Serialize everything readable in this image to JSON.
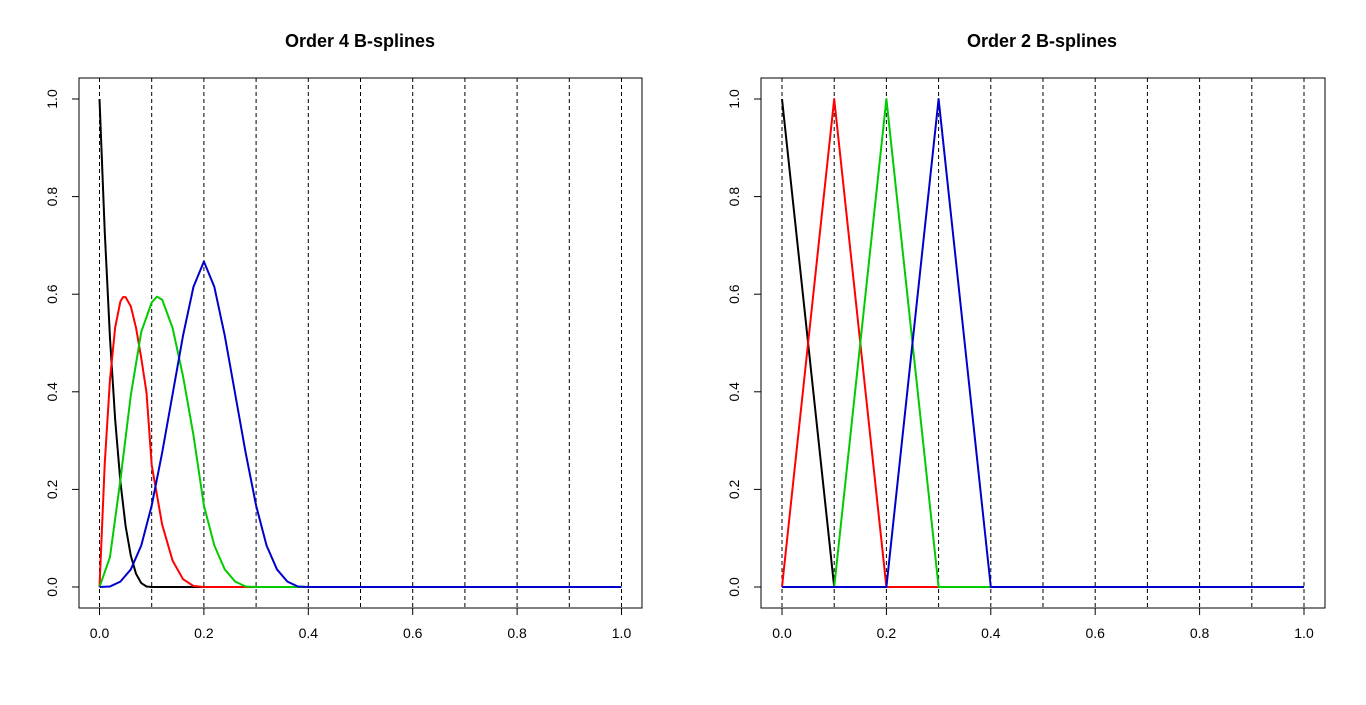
{
  "chart_data": [
    {
      "type": "line",
      "title": "Order 4 B-splines",
      "xlabel": "",
      "ylabel": "",
      "xlim": [
        0,
        1
      ],
      "ylim": [
        0,
        1
      ],
      "x_ticks": [
        "0.0",
        "0.2",
        "0.4",
        "0.6",
        "0.8",
        "1.0"
      ],
      "y_ticks": [
        "0.0",
        "0.2",
        "0.4",
        "0.6",
        "0.8",
        "1.0"
      ],
      "knot_lines": [
        0,
        0.1,
        0.2,
        0.3,
        0.4,
        0.5,
        0.6,
        0.7,
        0.8,
        0.9,
        1.0
      ],
      "series": [
        {
          "color": "#000000",
          "points": [
            [
              0,
              1
            ],
            [
              0.01,
              0.729
            ],
            [
              0.02,
              0.512
            ],
            [
              0.03,
              0.343
            ],
            [
              0.04,
              0.216
            ],
            [
              0.05,
              0.125
            ],
            [
              0.06,
              0.064
            ],
            [
              0.07,
              0.027
            ],
            [
              0.08,
              0.008
            ],
            [
              0.09,
              0.001
            ],
            [
              0.1,
              0
            ],
            [
              1,
              0
            ]
          ]
        },
        {
          "color": "#ff0000",
          "points": [
            [
              0,
              0
            ],
            [
              0.01,
              0.252
            ],
            [
              0.02,
              0.424
            ],
            [
              0.03,
              0.532
            ],
            [
              0.04,
              0.585
            ],
            [
              0.045,
              0.594
            ],
            [
              0.05,
              0.594
            ],
            [
              0.06,
              0.575
            ],
            [
              0.07,
              0.531
            ],
            [
              0.08,
              0.469
            ],
            [
              0.09,
              0.399
            ],
            [
              0.1,
              0.25
            ],
            [
              0.12,
              0.128
            ],
            [
              0.14,
              0.054
            ],
            [
              0.16,
              0.016
            ],
            [
              0.18,
              0.002
            ],
            [
              0.2,
              0
            ],
            [
              1,
              0
            ]
          ]
        },
        {
          "color": "#00cc00",
          "points": [
            [
              0,
              0
            ],
            [
              0.02,
              0.061
            ],
            [
              0.04,
              0.219
            ],
            [
              0.06,
              0.393
            ],
            [
              0.08,
              0.523
            ],
            [
              0.1,
              0.583
            ],
            [
              0.11,
              0.595
            ],
            [
              0.12,
              0.589
            ],
            [
              0.14,
              0.531
            ],
            [
              0.16,
              0.432
            ],
            [
              0.18,
              0.311
            ],
            [
              0.2,
              0.167
            ],
            [
              0.22,
              0.085
            ],
            [
              0.24,
              0.036
            ],
            [
              0.26,
              0.011
            ],
            [
              0.28,
              0.001
            ],
            [
              0.3,
              0
            ],
            [
              1,
              0
            ]
          ]
        },
        {
          "color": "#0000cc",
          "points": [
            [
              0,
              0
            ],
            [
              0.02,
              0.001
            ],
            [
              0.04,
              0.011
            ],
            [
              0.06,
              0.036
            ],
            [
              0.08,
              0.085
            ],
            [
              0.1,
              0.167
            ],
            [
              0.12,
              0.275
            ],
            [
              0.14,
              0.395
            ],
            [
              0.16,
              0.515
            ],
            [
              0.18,
              0.615
            ],
            [
              0.2,
              0.667
            ],
            [
              0.22,
              0.615
            ],
            [
              0.24,
              0.515
            ],
            [
              0.26,
              0.395
            ],
            [
              0.28,
              0.275
            ],
            [
              0.3,
              0.167
            ],
            [
              0.32,
              0.085
            ],
            [
              0.34,
              0.036
            ],
            [
              0.36,
              0.011
            ],
            [
              0.38,
              0.001
            ],
            [
              0.4,
              0
            ],
            [
              1,
              0
            ]
          ]
        }
      ]
    },
    {
      "type": "line",
      "title": "Order 2 B-splines",
      "xlabel": "",
      "ylabel": "",
      "xlim": [
        0,
        1
      ],
      "ylim": [
        0,
        1
      ],
      "x_ticks": [
        "0.0",
        "0.2",
        "0.4",
        "0.6",
        "0.8",
        "1.0"
      ],
      "y_ticks": [
        "0.0",
        "0.2",
        "0.4",
        "0.6",
        "0.8",
        "1.0"
      ],
      "knot_lines": [
        0,
        0.1,
        0.2,
        0.3,
        0.4,
        0.5,
        0.6,
        0.7,
        0.8,
        0.9,
        1.0
      ],
      "series": [
        {
          "color": "#000000",
          "points": [
            [
              0,
              1
            ],
            [
              0.1,
              0
            ],
            [
              1,
              0
            ]
          ]
        },
        {
          "color": "#ff0000",
          "points": [
            [
              0,
              0
            ],
            [
              0.1,
              1
            ],
            [
              0.2,
              0
            ],
            [
              1,
              0
            ]
          ]
        },
        {
          "color": "#00cc00",
          "points": [
            [
              0,
              0
            ],
            [
              0.1,
              0
            ],
            [
              0.2,
              1
            ],
            [
              0.3,
              0
            ],
            [
              1,
              0
            ]
          ]
        },
        {
          "color": "#0000cc",
          "points": [
            [
              0,
              0
            ],
            [
              0.2,
              0
            ],
            [
              0.3,
              1
            ],
            [
              0.4,
              0
            ],
            [
              1,
              0
            ]
          ]
        }
      ]
    }
  ]
}
